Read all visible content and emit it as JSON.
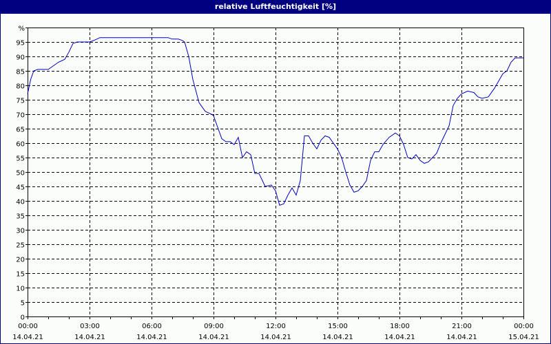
{
  "window": {
    "title": "relative Luftfeuchtigkeit [%]"
  },
  "colors": {
    "titlebar": "#000080",
    "line": "#0000c0",
    "background": "#fbfdfb"
  },
  "chart_data": {
    "type": "line",
    "title": "relative Luftfeuchtigkeit [%]",
    "xlabel": "",
    "ylabel": "%",
    "ylim": [
      0,
      100
    ],
    "xlim_hours": [
      0,
      24
    ],
    "grid": true,
    "y_ticks": [
      "0",
      "5",
      "10",
      "15",
      "20",
      "25",
      "30",
      "35",
      "40",
      "45",
      "50",
      "55",
      "60",
      "65",
      "70",
      "75",
      "80",
      "85",
      "90",
      "95",
      "%"
    ],
    "x_ticks": [
      {
        "time": "00:00",
        "date": "14.04.21"
      },
      {
        "time": "03:00",
        "date": "14.04.21"
      },
      {
        "time": "06:00",
        "date": "14.04.21"
      },
      {
        "time": "09:00",
        "date": "14.04.21"
      },
      {
        "time": "12:00",
        "date": "14.04.21"
      },
      {
        "time": "15:00",
        "date": "14.04.21"
      },
      {
        "time": "18:00",
        "date": "14.04.21"
      },
      {
        "time": "21:00",
        "date": "14.04.21"
      },
      {
        "time": "00:00",
        "date": "15.04.21"
      }
    ],
    "series": [
      {
        "name": "relative Luftfeuchtigkeit",
        "x_hours": [
          0,
          0.15,
          0.3,
          0.5,
          0.8,
          1.0,
          1.3,
          1.5,
          1.8,
          2.0,
          2.2,
          2.4,
          2.6,
          3.0,
          3.2,
          3.5,
          4.0,
          5.0,
          6.0,
          6.8,
          7.0,
          7.3,
          7.5,
          7.6,
          7.8,
          8.0,
          8.3,
          8.6,
          8.9,
          9.0,
          9.2,
          9.4,
          9.6,
          9.8,
          10.0,
          10.2,
          10.4,
          10.6,
          10.8,
          11.0,
          11.2,
          11.5,
          11.8,
          12.0,
          12.2,
          12.4,
          12.6,
          12.8,
          13.0,
          13.2,
          13.4,
          13.6,
          13.8,
          14.0,
          14.2,
          14.4,
          14.6,
          14.8,
          15.0,
          15.2,
          15.4,
          15.6,
          15.8,
          16.0,
          16.2,
          16.4,
          16.6,
          16.8,
          17.0,
          17.2,
          17.5,
          17.8,
          18.0,
          18.2,
          18.4,
          18.6,
          18.8,
          19.0,
          19.2,
          19.4,
          19.6,
          19.8,
          20.0,
          20.2,
          20.4,
          20.6,
          20.8,
          21.0,
          21.3,
          21.6,
          21.8,
          22.0,
          22.3,
          22.6,
          22.8,
          23.0,
          23.2,
          23.4,
          23.6,
          24.0
        ],
        "values": [
          77,
          82,
          85,
          85.5,
          85.5,
          85.5,
          87,
          88,
          89,
          91.5,
          94.5,
          95,
          95,
          95,
          95.5,
          96.5,
          96.5,
          96.5,
          96.5,
          96.5,
          96,
          96,
          95.5,
          95,
          90,
          82,
          74,
          71,
          70,
          69.5,
          65.5,
          61.5,
          60.5,
          60.5,
          59.5,
          62,
          55,
          57,
          56,
          49.5,
          49.5,
          45,
          45.5,
          43.5,
          38.5,
          39,
          42,
          44.5,
          42,
          47,
          62.5,
          62.5,
          60,
          58,
          61,
          62.5,
          62,
          60,
          58,
          55,
          50,
          45.5,
          43,
          43.5,
          45,
          47,
          54,
          57,
          57,
          59.5,
          62,
          63.5,
          62.5,
          59.5,
          55,
          54.5,
          56,
          54,
          53,
          53.5,
          55,
          56.5,
          60,
          63,
          66,
          73,
          75.5,
          77,
          78,
          77.5,
          76,
          75.5,
          76,
          79,
          81.5,
          84,
          85,
          88,
          89.5,
          89.5
        ]
      }
    ]
  }
}
